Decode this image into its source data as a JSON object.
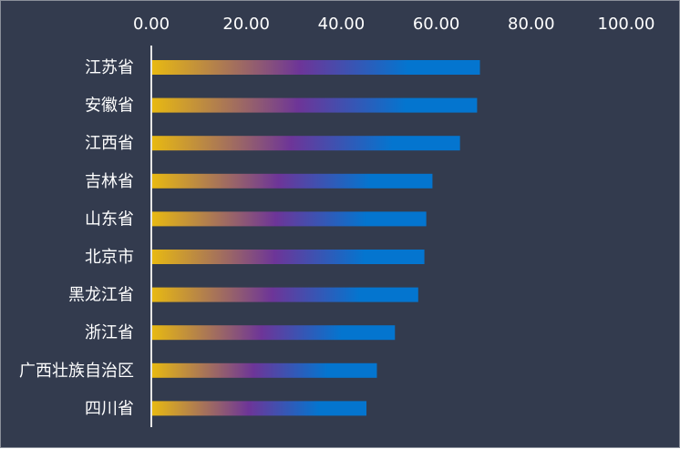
{
  "chart_data": {
    "type": "bar",
    "orientation": "horizontal",
    "categories": [
      "江苏省",
      "安徽省",
      "江西省",
      "吉林省",
      "山东省",
      "北京市",
      "黑龙江省",
      "浙江省",
      "广西壮族自治区",
      "四川省"
    ],
    "values": [
      69.2,
      68.6,
      65.0,
      59.2,
      57.9,
      57.5,
      56.2,
      51.3,
      47.5,
      45.3
    ],
    "xlim": [
      0,
      100
    ],
    "x_ticks": [
      "0.00",
      "20.00",
      "40.00",
      "60.00",
      "80.00",
      "100.00"
    ],
    "x_axis_position": "top",
    "grid": false,
    "title": "",
    "xlabel": "",
    "ylabel": "",
    "colors": {
      "background": "#333b4e",
      "bar_gradient": [
        "#e8b912",
        "#6d3598",
        "#0475cf"
      ],
      "text": "#ffffff",
      "axis_line": "#e6e6e6"
    }
  }
}
